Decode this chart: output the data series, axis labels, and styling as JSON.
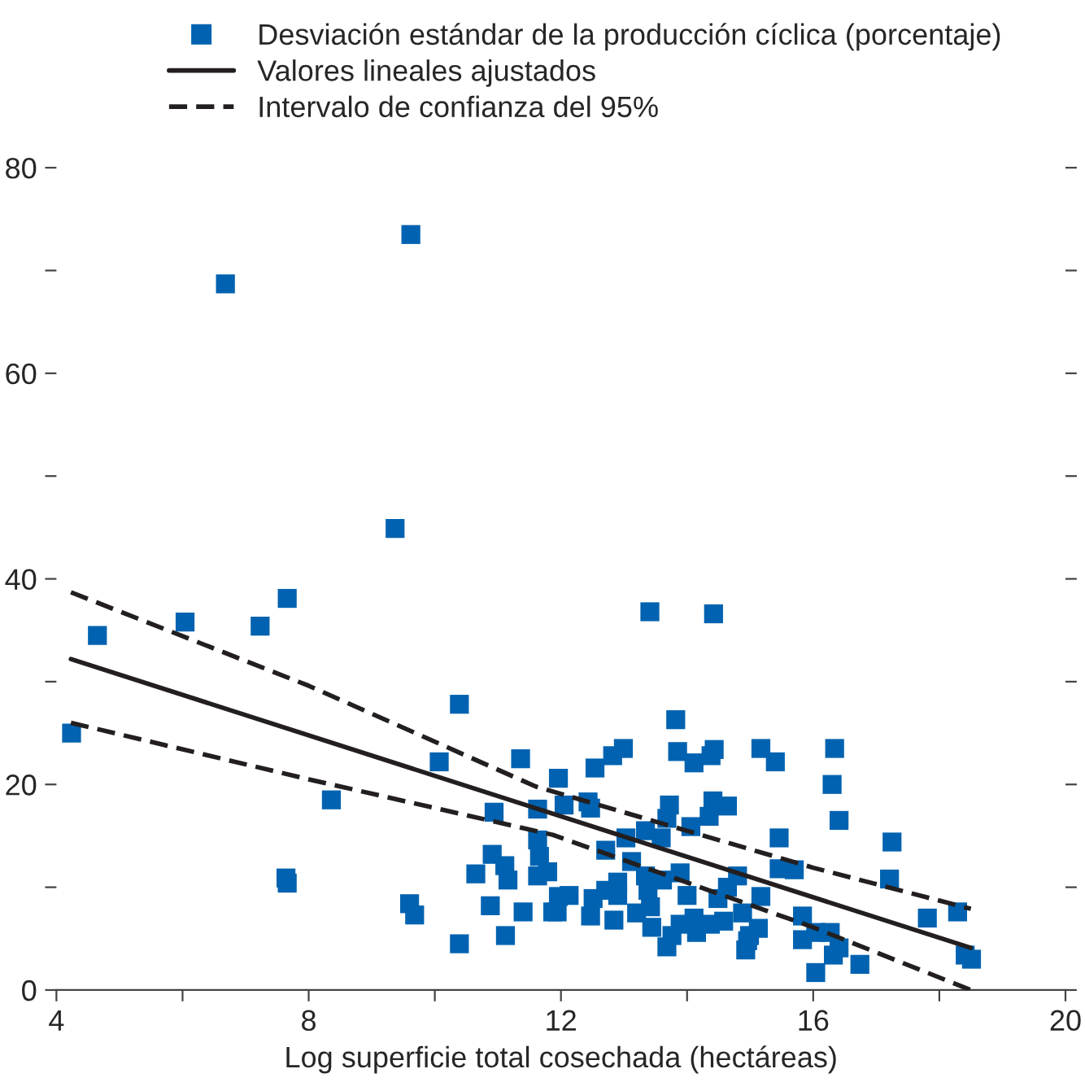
{
  "chart_data": {
    "type": "scatter",
    "xlabel": "Log superficie total cosechada (hectáreas)",
    "xlim": [
      4,
      20
    ],
    "ylim": [
      0,
      80
    ],
    "xticks": [
      4,
      {
        "value": 6,
        "label": null
      },
      8,
      {
        "value": 10,
        "label": null
      },
      12,
      {
        "value": 14,
        "label": null
      },
      16,
      {
        "value": 18,
        "label": null
      },
      20
    ],
    "yticks": [
      0,
      {
        "value": 10,
        "label": null
      },
      20,
      {
        "value": 30,
        "label": null
      },
      40,
      {
        "value": 50,
        "label": null
      },
      60,
      {
        "value": 70,
        "label": null
      },
      80
    ],
    "grid": false,
    "legend": "top",
    "series": [
      {
        "name": "Desviación estándar de la producción cíclica (porcentaje)",
        "marker": "square",
        "color": "#0062b0",
        "x": [
          4.24,
          4.65,
          6.04,
          6.68,
          7.23,
          7.66,
          7.64,
          7.66,
          8.36,
          9.37,
          9.62,
          10.39,
          10.07,
          11.36,
          9.6,
          9.68,
          10.39,
          10.88,
          10.65,
          10.91,
          10.94,
          11.11,
          11.16,
          11.12,
          11.63,
          11.63,
          11.66,
          11.63,
          11.79,
          11.4,
          11.87,
          13.41,
          14.42,
          13.82,
          12.99,
          12.82,
          13.85,
          14.11,
          14.38,
          14.43,
          15.17,
          15.4,
          16.34,
          16.3,
          16.41,
          17.25,
          17.21,
          17.81,
          18.29,
          18.41,
          18.51,
          16.74,
          16.04,
          16.32,
          16.41,
          16.27,
          16.04,
          15.83,
          15.83,
          15.46,
          15.46,
          15.7,
          15.17,
          15.13,
          14.96,
          14.93,
          14.99,
          14.88,
          14.8,
          14.64,
          14.64,
          14.41,
          14.35,
          14.06,
          13.72,
          13.68,
          13.59,
          13.34,
          13.03,
          13.12,
          13.34,
          13.38,
          13.61,
          13.89,
          14.0,
          14.49,
          14.58,
          14.37,
          14.15,
          14.11,
          13.89,
          13.76,
          13.68,
          13.44,
          13.42,
          13.2,
          12.9,
          12.9,
          12.71,
          12.51,
          12.47,
          12.84,
          12.71,
          12.43,
          12.47,
          12.54,
          11.96,
          12.05,
          12.13,
          11.96,
          11.94
        ],
        "values": [
          25.0,
          34.5,
          35.8,
          68.7,
          35.4,
          38.1,
          10.9,
          10.4,
          18.5,
          44.9,
          73.5,
          27.8,
          22.2,
          22.5,
          8.4,
          7.3,
          4.5,
          8.2,
          11.3,
          13.2,
          17.3,
          12.1,
          10.7,
          5.3,
          17.6,
          14.6,
          13.0,
          11.1,
          11.5,
          7.6,
          7.6,
          36.8,
          36.6,
          26.3,
          23.5,
          22.8,
          23.2,
          22.1,
          22.8,
          23.4,
          23.5,
          22.2,
          23.5,
          20.0,
          16.5,
          14.4,
          10.8,
          7.0,
          7.6,
          3.4,
          3.0,
          2.5,
          1.7,
          3.4,
          4.1,
          5.6,
          5.6,
          4.9,
          7.2,
          14.8,
          11.8,
          11.7,
          9.1,
          6.0,
          4.8,
          3.9,
          5.3,
          7.5,
          11.1,
          10.0,
          17.9,
          18.4,
          16.9,
          15.9,
          18.0,
          16.7,
          14.8,
          15.5,
          14.8,
          12.5,
          11.1,
          9.7,
          10.7,
          11.4,
          9.2,
          8.9,
          6.7,
          6.4,
          5.6,
          7.0,
          6.4,
          5.3,
          4.2,
          6.1,
          8.1,
          7.5,
          10.5,
          9.2,
          9.7,
          8.9,
          7.2,
          6.8,
          13.6,
          18.3,
          17.7,
          21.6,
          20.6,
          18.0,
          9.2,
          9.1,
          7.6
        ]
      },
      {
        "name": "Valores lineales ajustados",
        "type": "line",
        "line_style": "solid",
        "color": "#231f20",
        "x": [
          4.23,
          18.5
        ],
        "values": [
          32.2,
          4.1
        ]
      },
      {
        "name": "Intervalo de confianza del 95%",
        "type": "line",
        "line_style": "dashed",
        "color": "#231f20",
        "x": [
          4.23,
          8,
          11.6,
          16,
          18.5
        ],
        "values": [
          38.7,
          29.6,
          19.8,
          11.9,
          7.9
        ]
      },
      {
        "type": "line",
        "line_style": "dashed",
        "color": "#231f20",
        "x": [
          4.23,
          8,
          11.87,
          16,
          18.5
        ],
        "values": [
          26.0,
          20.5,
          15.1,
          6.1,
          0
        ]
      }
    ]
  }
}
